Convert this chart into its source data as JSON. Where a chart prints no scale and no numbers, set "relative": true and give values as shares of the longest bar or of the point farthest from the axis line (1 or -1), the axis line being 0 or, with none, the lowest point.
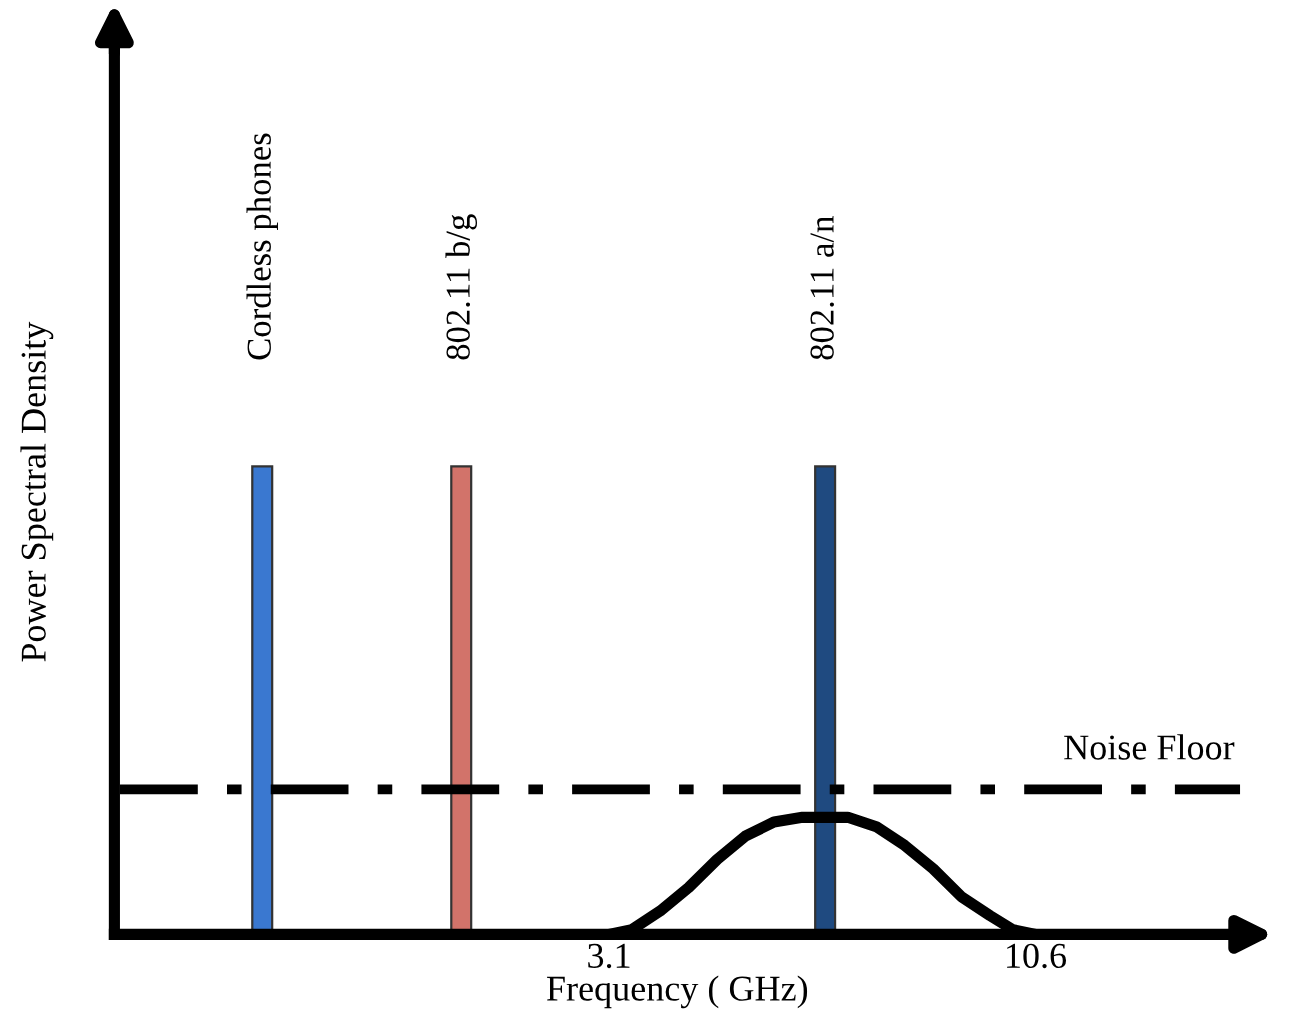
{
  "chart_data": {
    "type": "bar",
    "relative": true,
    "xlabel": "Frequency ( GHz)",
    "ylabel": "Power Spectral Density",
    "xlim": [
      -5.6,
      14.2
    ],
    "xticks": [
      3.1,
      10.6
    ],
    "grid": false,
    "legend": false,
    "series": [
      {
        "name": "Cordless phones",
        "x": [
          -3.0
        ],
        "values": [
          1
        ],
        "color": "#3a78d0"
      },
      {
        "name": "802.11 b/g",
        "x": [
          0.5
        ],
        "values": [
          1
        ],
        "color": "#d2736a"
      },
      {
        "name": "802.11 a/n",
        "x": [
          6.9
        ],
        "values": [
          1
        ],
        "color": "#1f4a80"
      },
      {
        "type": "line",
        "color": "#000000",
        "x": [
          3.1,
          3.5,
          4.0,
          4.5,
          5.0,
          5.5,
          6.0,
          6.5,
          6.9,
          7.3,
          7.8,
          8.3,
          8.8,
          9.3,
          9.8,
          10.2,
          10.6
        ],
        "values": [
          0,
          0.01,
          0.05,
          0.1,
          0.16,
          0.21,
          0.24,
          0.25,
          0.25,
          0.25,
          0.23,
          0.19,
          0.14,
          0.08,
          0.04,
          0.01,
          0
        ]
      }
    ],
    "ref_lines": [
      {
        "axis": "y",
        "value": 0.31,
        "label": "Noise Floor",
        "color": "#000000",
        "line_style": "dashed"
      }
    ]
  }
}
